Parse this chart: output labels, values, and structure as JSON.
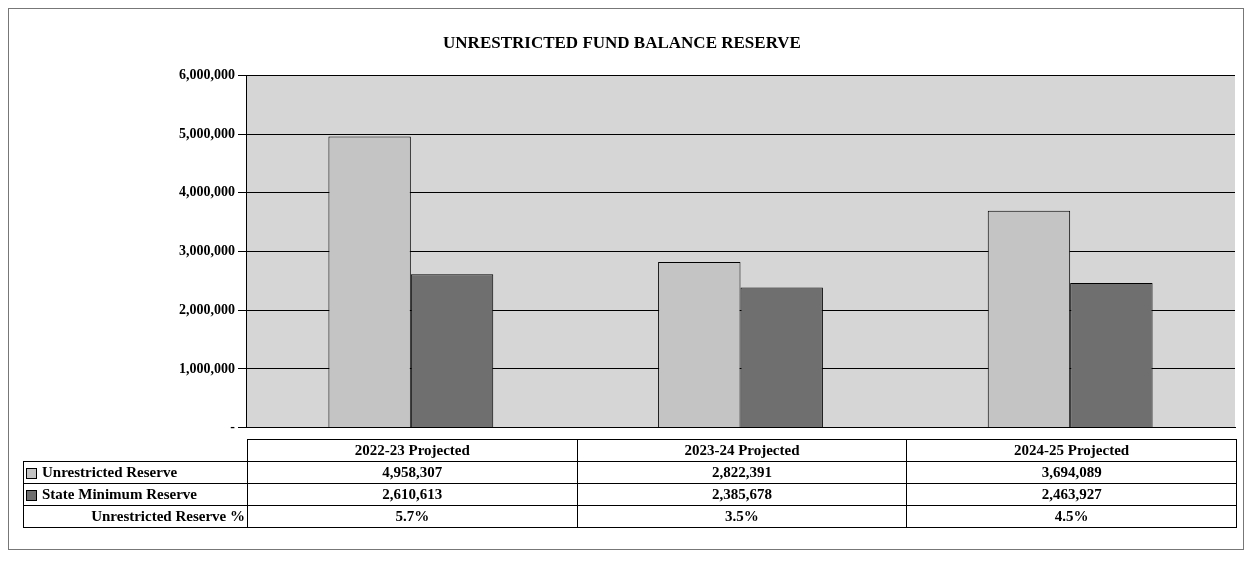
{
  "chart_data": {
    "type": "bar",
    "title": "UNRESTRICTED FUND BALANCE RESERVE",
    "categories": [
      "2022-23 Projected",
      "2023-24 Projected",
      "2024-25 Projected"
    ],
    "series": [
      {
        "name": "Unrestricted Reserve",
        "color": "#c4c4c4",
        "values": [
          4958307,
          2822391,
          3694089
        ],
        "value_labels": [
          "4,958,307",
          "2,822,391",
          "3,694,089"
        ]
      },
      {
        "name": "State Minimum Reserve",
        "color": "#6f6f6f",
        "values": [
          2610613,
          2385678,
          2463927
        ],
        "value_labels": [
          "2,610,613",
          "2,385,678",
          "2,463,927"
        ]
      }
    ],
    "ylim": [
      0,
      6000000
    ],
    "yticks": [
      {
        "value": 0,
        "label": "-"
      },
      {
        "value": 1000000,
        "label": "1,000,000"
      },
      {
        "value": 2000000,
        "label": "2,000,000"
      },
      {
        "value": 3000000,
        "label": "3,000,000"
      },
      {
        "value": 4000000,
        "label": "4,000,000"
      },
      {
        "value": 5000000,
        "label": "5,000,000"
      },
      {
        "value": 6000000,
        "label": "6,000,000"
      }
    ],
    "grid": "y",
    "legend": "bottom left",
    "annotations": [
      "Unrestricted Reserve %",
      "5.7%",
      "3.5%",
      "4.5%"
    ]
  }
}
